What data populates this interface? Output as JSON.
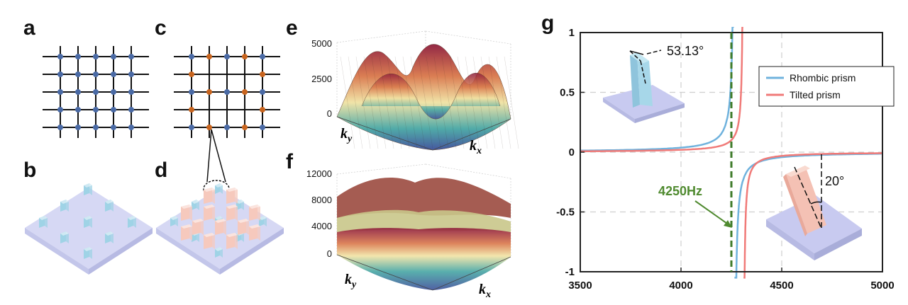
{
  "panels": {
    "a": "a",
    "b": "b",
    "c": "c",
    "d": "d",
    "e": "e",
    "f": "f",
    "g": "g"
  },
  "colors": {
    "lattice_line": "#111111",
    "site_blue": "#4a6aa5",
    "site_orange": "#c8641e",
    "plate": "#d6d8f4",
    "prism_blue": "#9fd3e6",
    "prism_pink": "#f6c9bd",
    "series_rhombic": "#6fb2dd",
    "series_tilted": "#f07a78",
    "marker_line": "#3e7b2a",
    "marker_text": "#4f8a2f"
  },
  "surface_e": {
    "ticks": [
      "5000",
      "2500",
      "0"
    ],
    "xlabel": "k_x",
    "ylabel": "k_y"
  },
  "surface_f": {
    "ticks": [
      "12000",
      "8000",
      "4000",
      "0"
    ],
    "xlabel": "k_x",
    "ylabel": "k_y"
  },
  "chart_data": {
    "type": "line",
    "xlim": [
      3500,
      5000
    ],
    "ylim": [
      -1,
      1
    ],
    "xticks": [
      "3500",
      "4000",
      "4500",
      "5000"
    ],
    "yticks": [
      "1",
      "0.5",
      "0",
      "-0.5",
      "-1"
    ],
    "grid": true,
    "legend_position": "top-right",
    "series": [
      {
        "name": "Rhombic prism",
        "resonance": 4265,
        "color": "#6fb2dd"
      },
      {
        "name": "Tilted prism",
        "resonance": 4310,
        "color": "#f07a78"
      }
    ],
    "marker": {
      "x": 4250,
      "label": "4250Hz"
    },
    "inset_angles": {
      "rhombic": "53.13°",
      "tilted": "20°"
    }
  }
}
